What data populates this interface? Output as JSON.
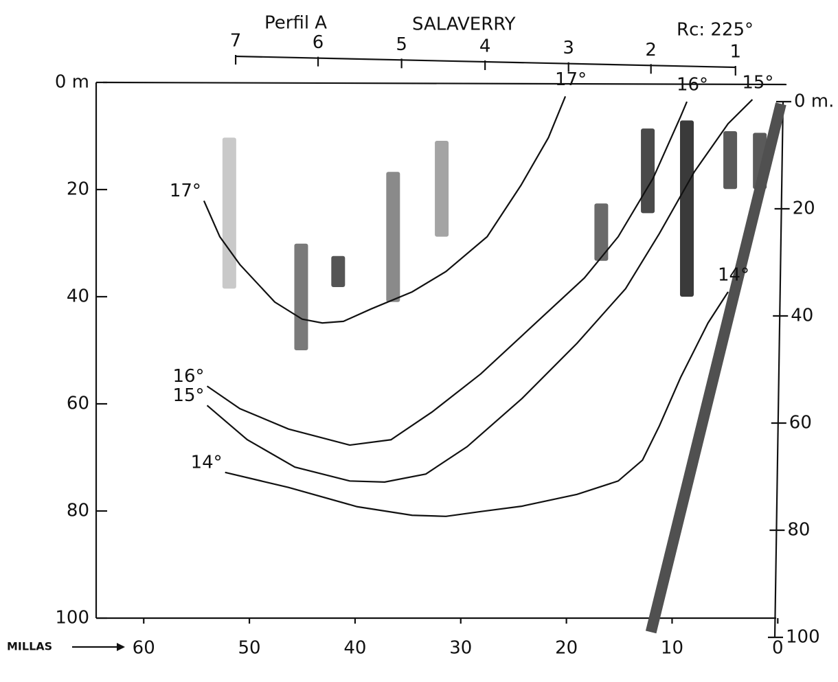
{
  "chart_data": {
    "type": "line",
    "title": "Perfil A",
    "subtitle": "SALAVERRY",
    "annotation": "Rc: 225°",
    "x_label": "MILLAS",
    "xlim": [
      64.5,
      -0.5
    ],
    "xticks": [
      60,
      50,
      40,
      30,
      20,
      10,
      0
    ],
    "ylim": [
      0,
      100
    ],
    "yticks": [
      {
        "value": 0,
        "label": "0 m"
      },
      20,
      40,
      60,
      80,
      100
    ],
    "y2lim": [
      0,
      100
    ],
    "y2ticks": [
      {
        "value": 0,
        "label": "0 m."
      },
      20,
      40,
      60,
      80,
      100
    ],
    "stations": {
      "numbers": [
        7,
        6,
        5,
        4,
        3,
        2,
        1
      ],
      "x": [
        51.3,
        43.5,
        35.6,
        27.7,
        19.8,
        12.0,
        4.0
      ]
    },
    "series": [
      {
        "name": "17°",
        "color": "#111111",
        "x": [
          54.3,
          52.8,
          50.9,
          47.6,
          45.0,
          43.1,
          41.1,
          38.5,
          34.6,
          31.4,
          27.5,
          24.3,
          21.7,
          20.1
        ],
        "values": [
          22.1,
          28.8,
          34.0,
          41.0,
          44.2,
          44.9,
          44.6,
          42.3,
          39.1,
          35.3,
          28.8,
          19.2,
          10.3,
          2.6
        ]
      },
      {
        "name": "16°",
        "color": "#111111",
        "x": [
          54.0,
          50.9,
          46.3,
          40.5,
          36.6,
          32.7,
          28.1,
          22.9,
          18.3,
          15.1,
          11.8,
          9.2,
          8.6
        ],
        "values": [
          56.7,
          60.9,
          64.7,
          67.7,
          66.7,
          61.5,
          54.4,
          44.9,
          36.5,
          28.8,
          17.9,
          6.4,
          3.6
        ]
      },
      {
        "name": "15°",
        "color": "#111111",
        "x": [
          54.0,
          50.2,
          45.7,
          40.5,
          37.2,
          33.3,
          29.4,
          24.2,
          19.0,
          14.4,
          11.2,
          7.9,
          4.7,
          2.4
        ],
        "values": [
          60.3,
          66.7,
          71.8,
          74.4,
          74.6,
          73.1,
          68.0,
          59.0,
          48.7,
          38.5,
          28.2,
          16.7,
          7.7,
          3.2
        ]
      },
      {
        "name": "14°",
        "color": "#111111",
        "x": [
          52.3,
          46.3,
          39.8,
          34.6,
          31.4,
          28.1,
          24.2,
          19.0,
          15.1,
          12.8,
          11.2,
          9.2,
          6.6,
          4.7
        ],
        "values": [
          72.8,
          75.6,
          79.2,
          80.8,
          81.0,
          80.1,
          79.1,
          76.9,
          74.4,
          70.5,
          64.1,
          55.1,
          44.9,
          39.1
        ]
      }
    ],
    "echo_traces": {
      "x": [
        51.9,
        45.1,
        41.6,
        36.4,
        31.8,
        16.7,
        12.3,
        8.6,
        4.5,
        1.7
      ],
      "top": [
        10.3,
        30.1,
        32.4,
        16.7,
        10.9,
        22.6,
        8.6,
        7.1,
        9.1,
        9.4
      ],
      "bottom": [
        38.5,
        50.0,
        38.2,
        41.0,
        28.8,
        33.3,
        24.4,
        40.0,
        19.9,
        19.9
      ],
      "colors": [
        "#c9c9c9",
        "#7a7a7a",
        "#555555",
        "#8a8a8a",
        "#a4a4a4",
        "#6a6a6a",
        "#4a4a4a",
        "#3a3a3a",
        "#5a5a5a",
        "#5a5a5a"
      ]
    },
    "seabed": {
      "x": [
        12.0,
        -0.3
      ],
      "values": [
        102.6,
        4.0
      ],
      "color": "#505050"
    }
  }
}
